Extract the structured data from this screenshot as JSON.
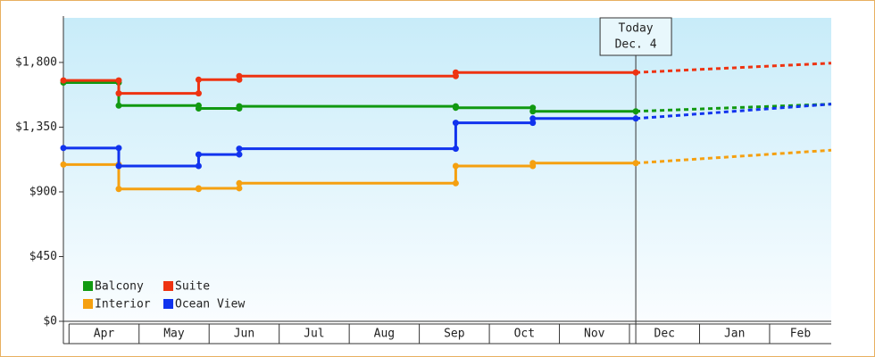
{
  "chart_data": {
    "type": "line",
    "xlim": [
      -0.08,
      10.88
    ],
    "ylim": [
      0,
      2110
    ],
    "yticks": [
      {
        "value": 0,
        "label": "$0"
      },
      {
        "value": 450,
        "label": "$450"
      },
      {
        "value": 900,
        "label": "$900"
      },
      {
        "value": 1350,
        "label": "$1,350"
      },
      {
        "value": 1800,
        "label": "$1,800"
      }
    ],
    "xticks": [
      {
        "value": 0.5,
        "label": "Apr"
      },
      {
        "value": 1.5,
        "label": "May"
      },
      {
        "value": 2.5,
        "label": "Jun"
      },
      {
        "value": 3.5,
        "label": "Jul"
      },
      {
        "value": 4.5,
        "label": "Aug"
      },
      {
        "value": 5.5,
        "label": "Sep"
      },
      {
        "value": 6.5,
        "label": "Oct"
      },
      {
        "value": 7.5,
        "label": "Nov"
      },
      {
        "value": 8.5,
        "label": "Dec"
      },
      {
        "value": 9.5,
        "label": "Jan"
      },
      {
        "value": 10.5,
        "label": "Feb"
      }
    ],
    "legend": "lower left",
    "annotation": {
      "x": 8.09,
      "lines": [
        "Today",
        "Dec. 4"
      ]
    },
    "series": [
      {
        "name": "Balcony",
        "color": "#119911",
        "x": [
          -0.08,
          0.71,
          0.71,
          1.85,
          1.85,
          2.43,
          2.43,
          5.52,
          5.52,
          6.62,
          6.62,
          8.09
        ],
        "values": [
          1660,
          1660,
          1500,
          1500,
          1480,
          1480,
          1495,
          1495,
          1485,
          1485,
          1460,
          1460
        ],
        "projection": {
          "x": [
            8.09,
            10.88
          ],
          "values": [
            1460,
            1510
          ]
        }
      },
      {
        "name": "Suite",
        "color": "#ee3311",
        "x": [
          -0.08,
          0.71,
          0.71,
          1.85,
          1.85,
          2.43,
          2.43,
          5.52,
          5.52,
          8.09
        ],
        "values": [
          1675,
          1675,
          1585,
          1585,
          1680,
          1680,
          1705,
          1705,
          1730,
          1730
        ],
        "projection": {
          "x": [
            8.09,
            10.88
          ],
          "values": [
            1730,
            1795
          ]
        }
      },
      {
        "name": "Interior",
        "color": "#f5a010",
        "x": [
          -0.08,
          0.71,
          0.71,
          1.85,
          1.85,
          2.43,
          2.43,
          5.52,
          5.52,
          6.62,
          6.62,
          8.09
        ],
        "values": [
          1090,
          1090,
          920,
          920,
          925,
          925,
          960,
          960,
          1080,
          1080,
          1100,
          1100
        ],
        "projection": {
          "x": [
            8.09,
            10.88
          ],
          "values": [
            1100,
            1190
          ]
        }
      },
      {
        "name": "Ocean View",
        "color": "#1133ee",
        "x": [
          -0.08,
          0.71,
          0.71,
          1.85,
          1.85,
          2.43,
          2.43,
          5.52,
          5.52,
          6.62,
          6.62,
          8.09
        ],
        "values": [
          1205,
          1205,
          1080,
          1080,
          1160,
          1160,
          1200,
          1200,
          1380,
          1380,
          1410,
          1410
        ],
        "projection": {
          "x": [
            8.09,
            10.88
          ],
          "values": [
            1410,
            1510
          ]
        }
      }
    ]
  }
}
